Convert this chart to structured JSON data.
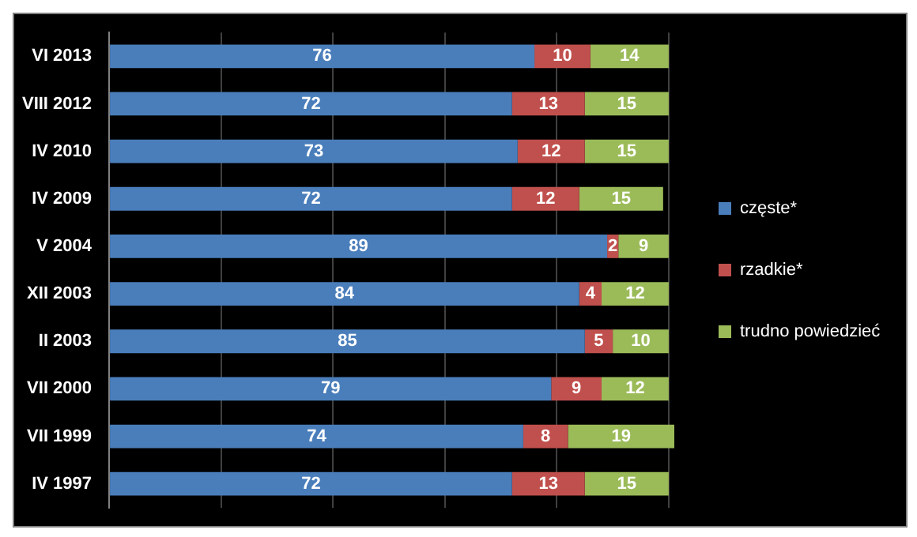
{
  "chart_data": {
    "type": "bar",
    "orientation": "horizontal",
    "stacked": true,
    "categories": [
      "VI 2013",
      "VIII 2012",
      "IV 2010",
      "IV 2009",
      "V 2004",
      "XII 2003",
      "II 2003",
      "VII 2000",
      "VII 1999",
      "IV 1997"
    ],
    "series": [
      {
        "name": "częste*",
        "color": "#4a7ebb",
        "values": [
          76,
          72,
          73,
          72,
          89,
          84,
          85,
          79,
          74,
          72
        ]
      },
      {
        "name": "rzadkie*",
        "color": "#c0504d",
        "values": [
          10,
          13,
          12,
          12,
          2,
          4,
          5,
          9,
          8,
          13
        ]
      },
      {
        "name": "trudno powiedzieć",
        "color": "#9bbb59",
        "values": [
          14,
          15,
          15,
          15,
          9,
          12,
          10,
          12,
          19,
          15
        ]
      }
    ],
    "xlim": [
      0,
      101
    ],
    "xticks": [
      {
        "value": 0,
        "label": null
      },
      {
        "value": 20,
        "label": null
      },
      {
        "value": 40,
        "label": null
      },
      {
        "value": 60,
        "label": null
      },
      {
        "value": 80,
        "label": null
      },
      {
        "value": 100,
        "label": null
      }
    ],
    "grid": "x",
    "legend": "right",
    "tick_labels": "y",
    "data_labels": true
  }
}
